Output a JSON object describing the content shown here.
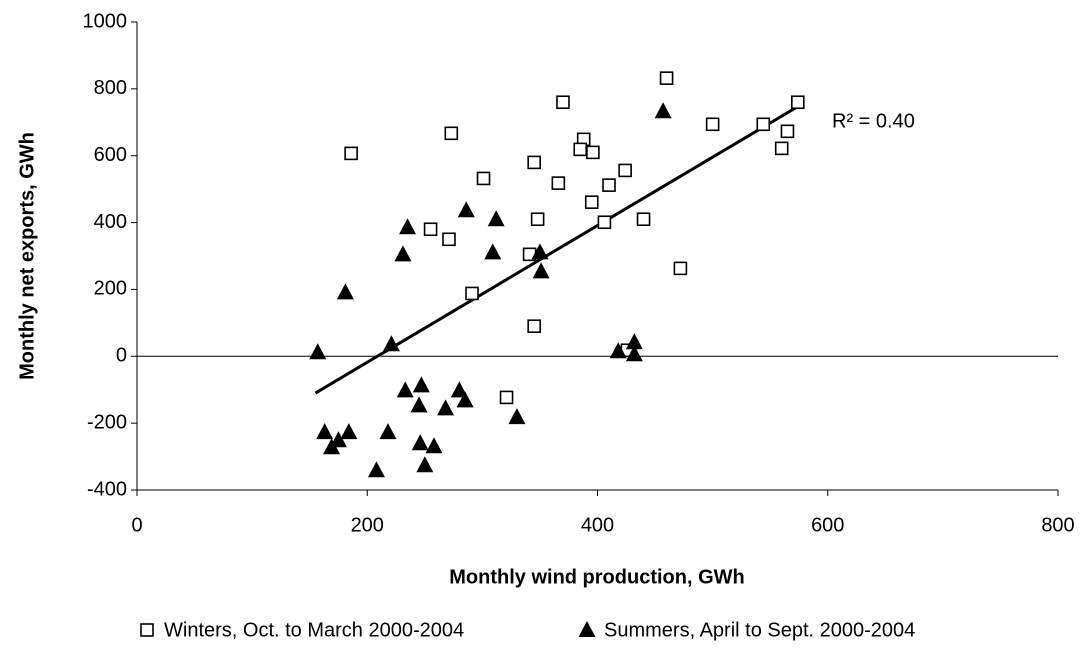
{
  "chart_data": {
    "type": "scatter",
    "xlabel": "Monthly wind production, GWh",
    "ylabel": "Monthly net exports, GWh",
    "xlim": [
      0,
      800
    ],
    "xticks": [
      0,
      200,
      400,
      600,
      800
    ],
    "ylim": [
      -400,
      1000
    ],
    "yticks": [
      -400,
      -200,
      0,
      200,
      400,
      600,
      800,
      1000
    ],
    "grid": false,
    "legend": "bottom",
    "annotation": "R² = 0.40",
    "series": [
      {
        "name": "Winters, Oct. to March 2000-2004",
        "marker": "square",
        "color": "#000000",
        "x": [
          186,
          273,
          301,
          255,
          271,
          291,
          345,
          348,
          341,
          345,
          321,
          370,
          366,
          388,
          385,
          396,
          395,
          410,
          424,
          406,
          440,
          460,
          472,
          500,
          544,
          565,
          560,
          574,
          426
        ],
        "values": [
          607,
          667,
          532,
          380,
          350,
          188,
          580,
          410,
          305,
          90,
          -123,
          760,
          518,
          649,
          619,
          610,
          461,
          512,
          556,
          401,
          410,
          832,
          263,
          694,
          694,
          673,
          622,
          760,
          18
        ]
      },
      {
        "name": "Summers, April to Sept. 2000-2004",
        "marker": "triangle",
        "color": "#000000",
        "x": [
          157,
          181,
          163,
          169,
          175,
          184,
          218,
          221,
          231,
          235,
          233,
          247,
          245,
          246,
          250,
          258,
          208,
          268,
          280,
          285,
          286,
          309,
          312,
          330,
          350,
          351,
          418,
          432,
          432,
          457
        ],
        "values": [
          12,
          191,
          -227,
          -272,
          -251,
          -227,
          -227,
          36,
          305,
          386,
          -102,
          -87,
          -147,
          -260,
          -326,
          -269,
          -341,
          -156,
          -102,
          -132,
          437,
          311,
          410,
          -182,
          311,
          254,
          15,
          42,
          6,
          733
        ]
      }
    ],
    "trendline": {
      "color": "#000000",
      "x": [
        155,
        573
      ],
      "values": [
        -110,
        745
      ]
    }
  }
}
